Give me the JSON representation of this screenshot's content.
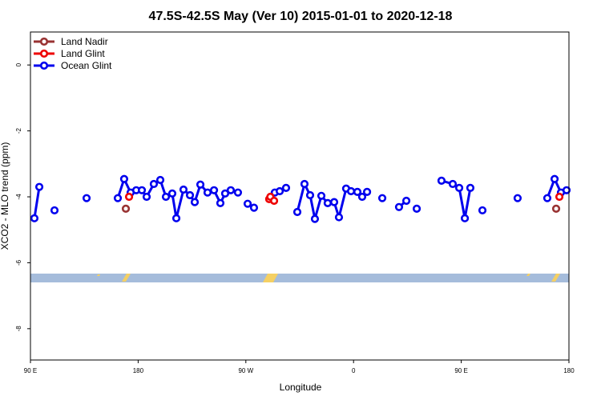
{
  "chart_data": {
    "type": "line",
    "title": "47.5S-42.5S May (Ver 10)   2015-01-01 to 2020-12-18",
    "x_label": "Longitude",
    "y_label": "XCO2 - MLO trend (ppm)",
    "xlim": [
      90,
      540
    ],
    "ylim": [
      -8.95,
      1
    ],
    "xticks": [
      {
        "value": 90,
        "label": "90 E"
      },
      180,
      {
        "value": 270,
        "label": "90 W"
      },
      {
        "value": 360,
        "label": "0"
      },
      {
        "value": 450,
        "label": "90 E"
      },
      {
        "value": 540,
        "label": "180"
      }
    ],
    "yticks": [
      0,
      -2,
      -4,
      -6,
      -8
    ],
    "legend": "top-left",
    "series": [
      {
        "name": "Land Nadir",
        "color": "#993333",
        "x": [
          169.7,
          null,
          529.3
        ],
        "values": [
          -4.36,
          null,
          -4.36
        ]
      },
      {
        "name": "Land Glint",
        "color": "#ee0000",
        "x": [
          172.4,
          null,
          289.5,
          290.5,
          293.6,
          null,
          532
        ],
        "values": [
          -4.0,
          null,
          -4.07,
          -4.0,
          -4.12,
          null,
          -4.0
        ]
      },
      {
        "name": "Ocean Glint",
        "color": "#0000ee",
        "x": [
          93.3,
          97.4,
          null,
          110.1,
          null,
          136.9,
          null,
          163,
          168.3,
          173.7,
          178.4,
          183.1,
          187.1,
          193.1,
          198.5,
          203.2,
          208.5,
          211.9,
          217.9,
          223.3,
          227.3,
          232,
          238,
          243.4,
          248.7,
          252.7,
          257.4,
          263.4,
          null,
          271.5,
          276.8,
          null,
          294.2,
          298.3,
          303.6,
          null,
          313,
          319,
          323.7,
          327.7,
          333.1,
          338.4,
          343.8,
          347.8,
          353.8,
          357.9,
          363.2,
          367.2,
          371.3,
          null,
          384,
          null,
          398,
          404.1,
          null,
          412.8,
          null,
          433.5,
          442.9,
          448.3,
          453,
          457.6,
          null,
          467.7,
          null,
          497.1,
          null,
          521.9,
          528,
          533.3,
          538
        ],
        "values": [
          -4.65,
          -3.7,
          null,
          -4.41,
          null,
          -4.04,
          null,
          -4.04,
          -3.46,
          -3.87,
          -3.8,
          -3.8,
          -4.0,
          -3.61,
          -3.49,
          -4.0,
          -3.9,
          -4.65,
          -3.78,
          -3.95,
          -4.16,
          -3.63,
          -3.87,
          -3.8,
          -4.19,
          -3.9,
          -3.8,
          -3.87,
          null,
          -4.21,
          -4.33,
          null,
          -3.87,
          -3.83,
          -3.73,
          null,
          -4.46,
          -3.61,
          -3.95,
          -4.67,
          -3.97,
          -4.19,
          -4.16,
          -4.62,
          -3.75,
          -3.83,
          -3.85,
          -4.0,
          -3.85,
          null,
          -4.04,
          null,
          -4.31,
          -4.12,
          null,
          -4.36,
          null,
          -3.51,
          -3.61,
          -3.73,
          -4.65,
          -3.73,
          null,
          -4.41,
          null,
          -4.04,
          null,
          -4.04,
          -3.46,
          -3.87,
          -3.8
        ]
      }
    ]
  }
}
